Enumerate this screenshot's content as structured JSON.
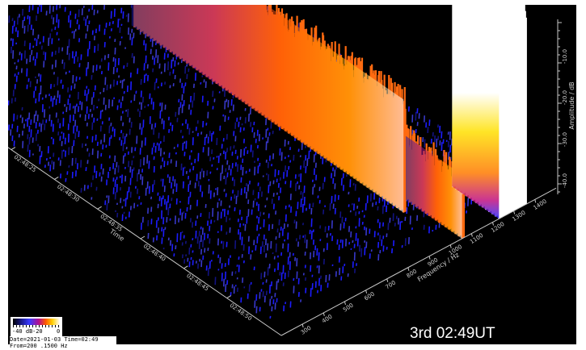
{
  "chart_data": {
    "type": "waterfall-3d",
    "title": "",
    "stamp": "3rd 02:49UT",
    "axes": {
      "time": {
        "label": "Time",
        "ticks": [
          "02:48:15",
          "02:48:20",
          "02:48:25",
          "02:48:30",
          "02:48:35",
          "02:48:40",
          "02:48:45",
          "02:48:50"
        ]
      },
      "frequency": {
        "label": "Frequency / Hz",
        "unit": "Hz",
        "ticks": [
          300,
          400,
          500,
          600,
          700,
          800,
          900,
          1000,
          1100,
          1200,
          1300,
          1400
        ],
        "range": [
          200,
          1500
        ]
      },
      "amplitude": {
        "label": "Amplitude / dB",
        "ticks": [
          -10.0,
          -20.0,
          -30.0,
          -40.0
        ],
        "range": [
          -45,
          0
        ]
      }
    },
    "series": [
      {
        "name": "",
        "freq_start_hz": 1000,
        "freq_end_hz": 1010,
        "t_start_s": 5,
        "t_end_s": 34,
        "peak_db": -22
      },
      {
        "name": "",
        "freq_start_hz": 1055,
        "freq_end_hz": 1065,
        "t_start_s": 0,
        "t_end_s": 6,
        "peak_db": -32
      },
      {
        "name": "",
        "freq_start_hz": 1230,
        "freq_end_hz": 1360,
        "t_start_s": 0,
        "t_end_s": 5,
        "peak_db": -5
      }
    ],
    "legend": {
      "labels": [
        "-40 dB",
        "-20",
        "0"
      ],
      "colors": [
        "#000000",
        "#3a3aff",
        "#b01090",
        "#ff5a00",
        "#ffd000",
        "#ffffff"
      ]
    },
    "caption": {
      "line1": "Date=2021-01-03 Time=02:49",
      "line2": "From=200 .1500 Hz"
    }
  }
}
